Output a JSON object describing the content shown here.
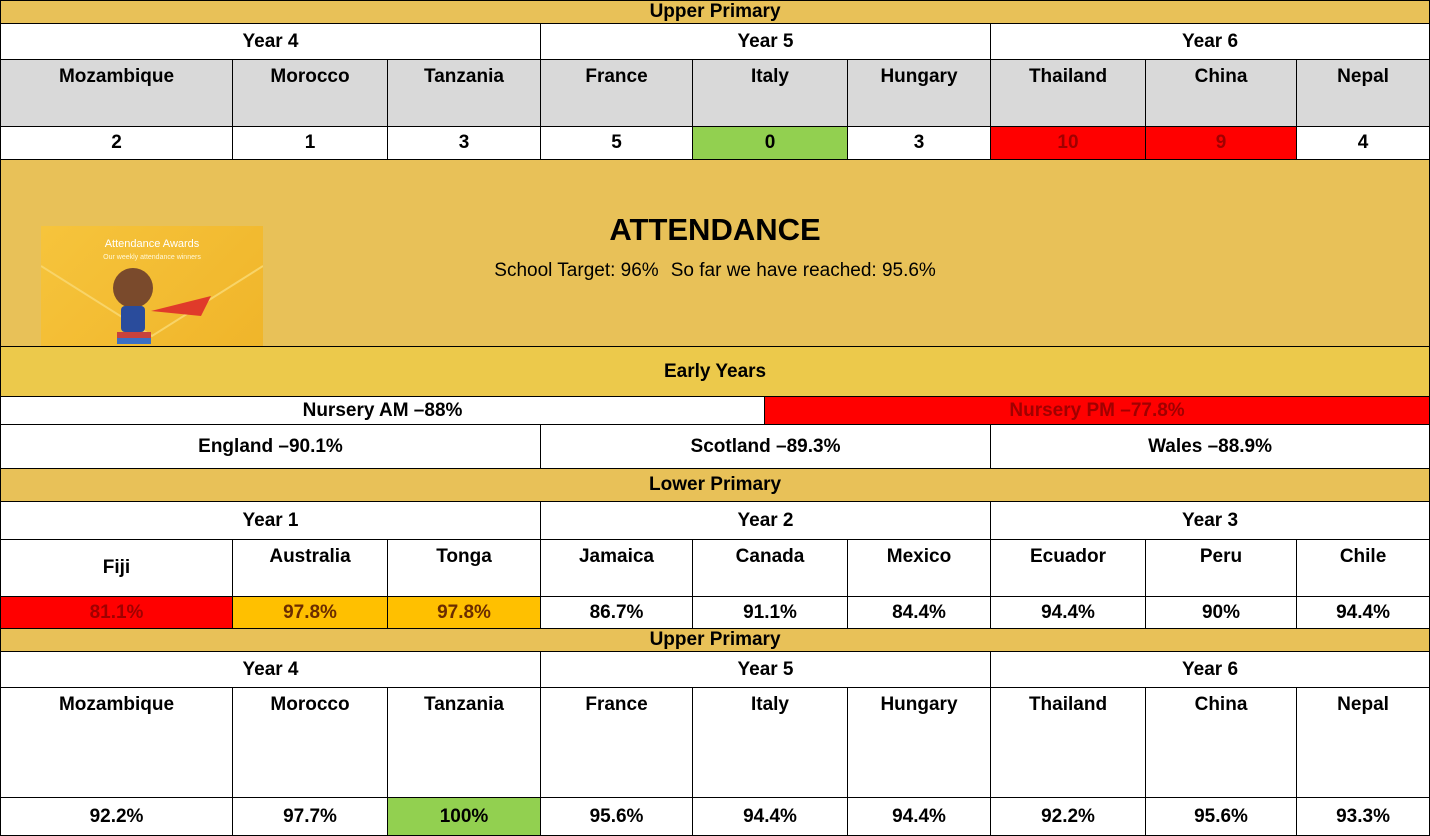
{
  "upper_primary_top": {
    "title": "Upper Primary",
    "years": [
      {
        "name": "Year 4",
        "classes": [
          {
            "name": "Mozambique",
            "value": "2"
          },
          {
            "name": "Morocco",
            "value": "1"
          },
          {
            "name": "Tanzania",
            "value": "3"
          }
        ]
      },
      {
        "name": "Year 5",
        "classes": [
          {
            "name": "France",
            "value": "5"
          },
          {
            "name": "Italy",
            "value": "0"
          },
          {
            "name": "Hungary",
            "value": "3"
          }
        ]
      },
      {
        "name": "Year 6",
        "classes": [
          {
            "name": "Thailand",
            "value": "10"
          },
          {
            "name": "China",
            "value": "9"
          },
          {
            "name": "Nepal",
            "value": "4"
          }
        ]
      }
    ]
  },
  "attendance": {
    "image": {
      "title": "Attendance Awards",
      "subtitle": "Our weekly attendance winners"
    },
    "title": "ATTENDANCE",
    "target": "School Target: 96%",
    "reached": "So far we have reached: 95.6%"
  },
  "early_years": {
    "title": "Early Years",
    "nursery": [
      "Nursery AM –88%",
      "Nursery PM –77.8%"
    ],
    "houses": [
      "England –90.1%",
      "Scotland –89.3%",
      "Wales –88.9%"
    ]
  },
  "lower_primary": {
    "title": "Lower Primary",
    "years": [
      {
        "name": "Year 1",
        "classes": [
          {
            "name": "Fiji",
            "value": "81.1%"
          },
          {
            "name": "Australia",
            "value": "97.8%"
          },
          {
            "name": "Tonga",
            "value": "97.8%"
          }
        ]
      },
      {
        "name": "Year 2",
        "classes": [
          {
            "name": "Jamaica",
            "value": "86.7%"
          },
          {
            "name": "Canada",
            "value": "91.1%"
          },
          {
            "name": "Mexico",
            "value": "84.4%"
          }
        ]
      },
      {
        "name": "Year 3",
        "classes": [
          {
            "name": "Ecuador",
            "value": "94.4%"
          },
          {
            "name": "Peru",
            "value": "90%"
          },
          {
            "name": "Chile",
            "value": "94.4%"
          }
        ]
      }
    ]
  },
  "upper_primary": {
    "title": "Upper Primary",
    "years": [
      {
        "name": "Year 4",
        "classes": [
          {
            "name": "Mozambique",
            "value": "92.2%"
          },
          {
            "name": "Morocco",
            "value": "97.7%"
          },
          {
            "name": "Tanzania",
            "value": "100%"
          }
        ]
      },
      {
        "name": "Year 5",
        "classes": [
          {
            "name": "France",
            "value": "95.6%"
          },
          {
            "name": "Italy",
            "value": "94.4%"
          },
          {
            "name": "Hungary",
            "value": "94.4%"
          }
        ]
      },
      {
        "name": "Year 6",
        "classes": [
          {
            "name": "Thailand",
            "value": "92.2%"
          },
          {
            "name": "China",
            "value": "95.6%"
          },
          {
            "name": "Nepal",
            "value": "93.3%"
          }
        ]
      }
    ]
  }
}
